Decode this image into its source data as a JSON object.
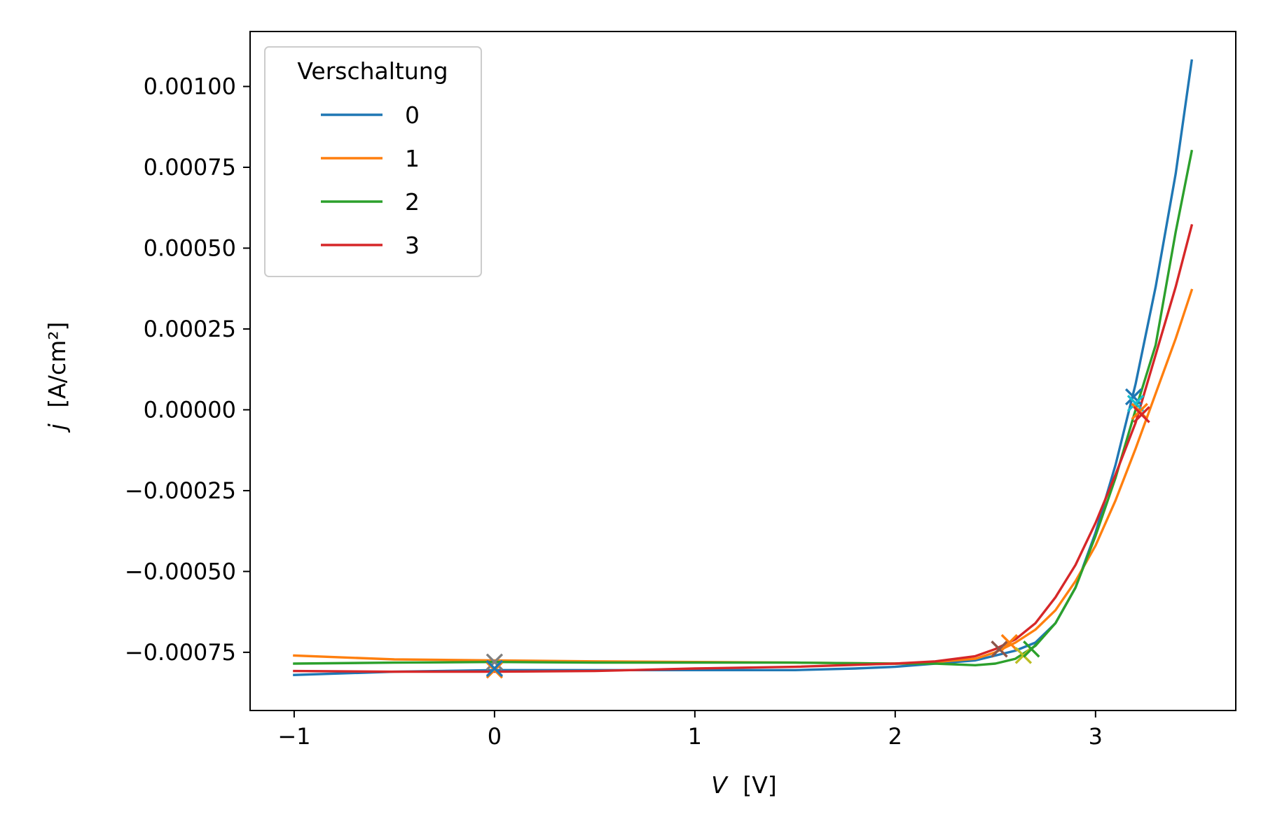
{
  "chart_data": {
    "type": "line",
    "title": "",
    "xlabel_symbol": "V",
    "xlabel_unit": "[V]",
    "ylabel_symbol": "j",
    "ylabel_unit": "[A/cm²]",
    "xlim": [
      -1.22,
      3.7
    ],
    "ylim": [
      -0.00093,
      0.00117
    ],
    "x_ticks": [
      -1,
      0,
      1,
      2,
      3
    ],
    "x_tick_labels": [
      "−1",
      "0",
      "1",
      "2",
      "3"
    ],
    "y_ticks": [
      0.001,
      0.00075,
      0.0005,
      0.00025,
      0.0,
      -0.00025,
      -0.0005,
      -0.00075
    ],
    "y_tick_labels": [
      "0.00100",
      "0.00075",
      "0.00050",
      "0.00025",
      "0.00000",
      "−0.00025",
      "−0.00050",
      "−0.00075"
    ],
    "grid": false,
    "legend": {
      "title": "Verschaltung",
      "placement": "top-left"
    },
    "series": [
      {
        "name": "0",
        "color": "#1f77b4",
        "x": [
          -1.0,
          -0.5,
          0.0,
          0.5,
          1.0,
          1.5,
          1.8,
          2.0,
          2.2,
          2.4,
          2.5,
          2.6,
          2.7,
          2.8,
          2.9,
          3.0,
          3.1,
          3.2,
          3.3,
          3.4,
          3.48
        ],
        "y": [
          -0.00082,
          -0.00081,
          -0.000805,
          -0.000805,
          -0.000805,
          -0.000805,
          -0.0008,
          -0.000795,
          -0.000785,
          -0.000775,
          -0.00076,
          -0.000745,
          -0.00072,
          -0.00066,
          -0.00055,
          -0.00038,
          -0.00017,
          8e-05,
          0.00038,
          0.00073,
          0.00108
        ]
      },
      {
        "name": "1",
        "color": "#ff7f0e",
        "x": [
          -1.0,
          -0.5,
          0.0,
          0.5,
          1.0,
          1.5,
          2.0,
          2.2,
          2.4,
          2.5,
          2.6,
          2.7,
          2.8,
          2.9,
          3.0,
          3.1,
          3.2,
          3.3,
          3.4,
          3.48
        ],
        "y": [
          -0.00076,
          -0.000772,
          -0.000775,
          -0.000778,
          -0.00078,
          -0.000782,
          -0.000785,
          -0.00078,
          -0.00077,
          -0.00075,
          -0.00072,
          -0.00068,
          -0.00062,
          -0.00053,
          -0.00042,
          -0.00028,
          -0.00012,
          5e-05,
          0.00022,
          0.00037
        ]
      },
      {
        "name": "2",
        "color": "#2ca02c",
        "x": [
          -1.0,
          -0.5,
          0.0,
          0.5,
          1.0,
          1.5,
          2.0,
          2.2,
          2.4,
          2.5,
          2.6,
          2.7,
          2.8,
          2.9,
          3.0,
          3.1,
          3.2,
          3.3,
          3.4,
          3.48
        ],
        "y": [
          -0.000785,
          -0.000782,
          -0.00078,
          -0.000782,
          -0.000782,
          -0.000782,
          -0.000785,
          -0.000785,
          -0.00079,
          -0.000785,
          -0.00077,
          -0.00073,
          -0.00066,
          -0.00055,
          -0.00039,
          -0.00021,
          0.0,
          0.0002,
          0.00055,
          0.0008
        ]
      },
      {
        "name": "3",
        "color": "#d62728",
        "x": [
          -1.0,
          -0.5,
          0.0,
          0.5,
          1.0,
          1.5,
          2.0,
          2.2,
          2.4,
          2.5,
          2.6,
          2.7,
          2.8,
          2.9,
          3.0,
          3.1,
          3.2,
          3.3,
          3.4,
          3.48
        ],
        "y": [
          -0.000808,
          -0.00081,
          -0.00081,
          -0.000808,
          -0.0008,
          -0.000795,
          -0.000785,
          -0.000778,
          -0.000762,
          -0.00074,
          -0.00071,
          -0.00066,
          -0.00058,
          -0.00048,
          -0.00035,
          -0.0002,
          -4e-05,
          0.00017,
          0.00038,
          0.00057
        ]
      }
    ],
    "markers": [
      {
        "x": 0.0,
        "y": -0.00078,
        "color": "#7f7f7f"
      },
      {
        "x": 0.0,
        "y": -0.000805,
        "color": "#ff7f0e"
      },
      {
        "x": 0.0,
        "y": -0.0008,
        "color": "#1f77b4"
      },
      {
        "x": 2.52,
        "y": -0.00074,
        "color": "#8c564b"
      },
      {
        "x": 2.57,
        "y": -0.00072,
        "color": "#ff7f0e"
      },
      {
        "x": 2.64,
        "y": -0.00076,
        "color": "#bcbd22"
      },
      {
        "x": 2.68,
        "y": -0.00074,
        "color": "#2ca02c"
      },
      {
        "x": 3.19,
        "y": 4e-05,
        "color": "#1f77b4"
      },
      {
        "x": 3.2,
        "y": 2e-05,
        "color": "#17becf"
      },
      {
        "x": 3.22,
        "y": -5e-06,
        "color": "#ff7f0e"
      },
      {
        "x": 3.23,
        "y": -1.5e-05,
        "color": "#d62728"
      }
    ]
  }
}
